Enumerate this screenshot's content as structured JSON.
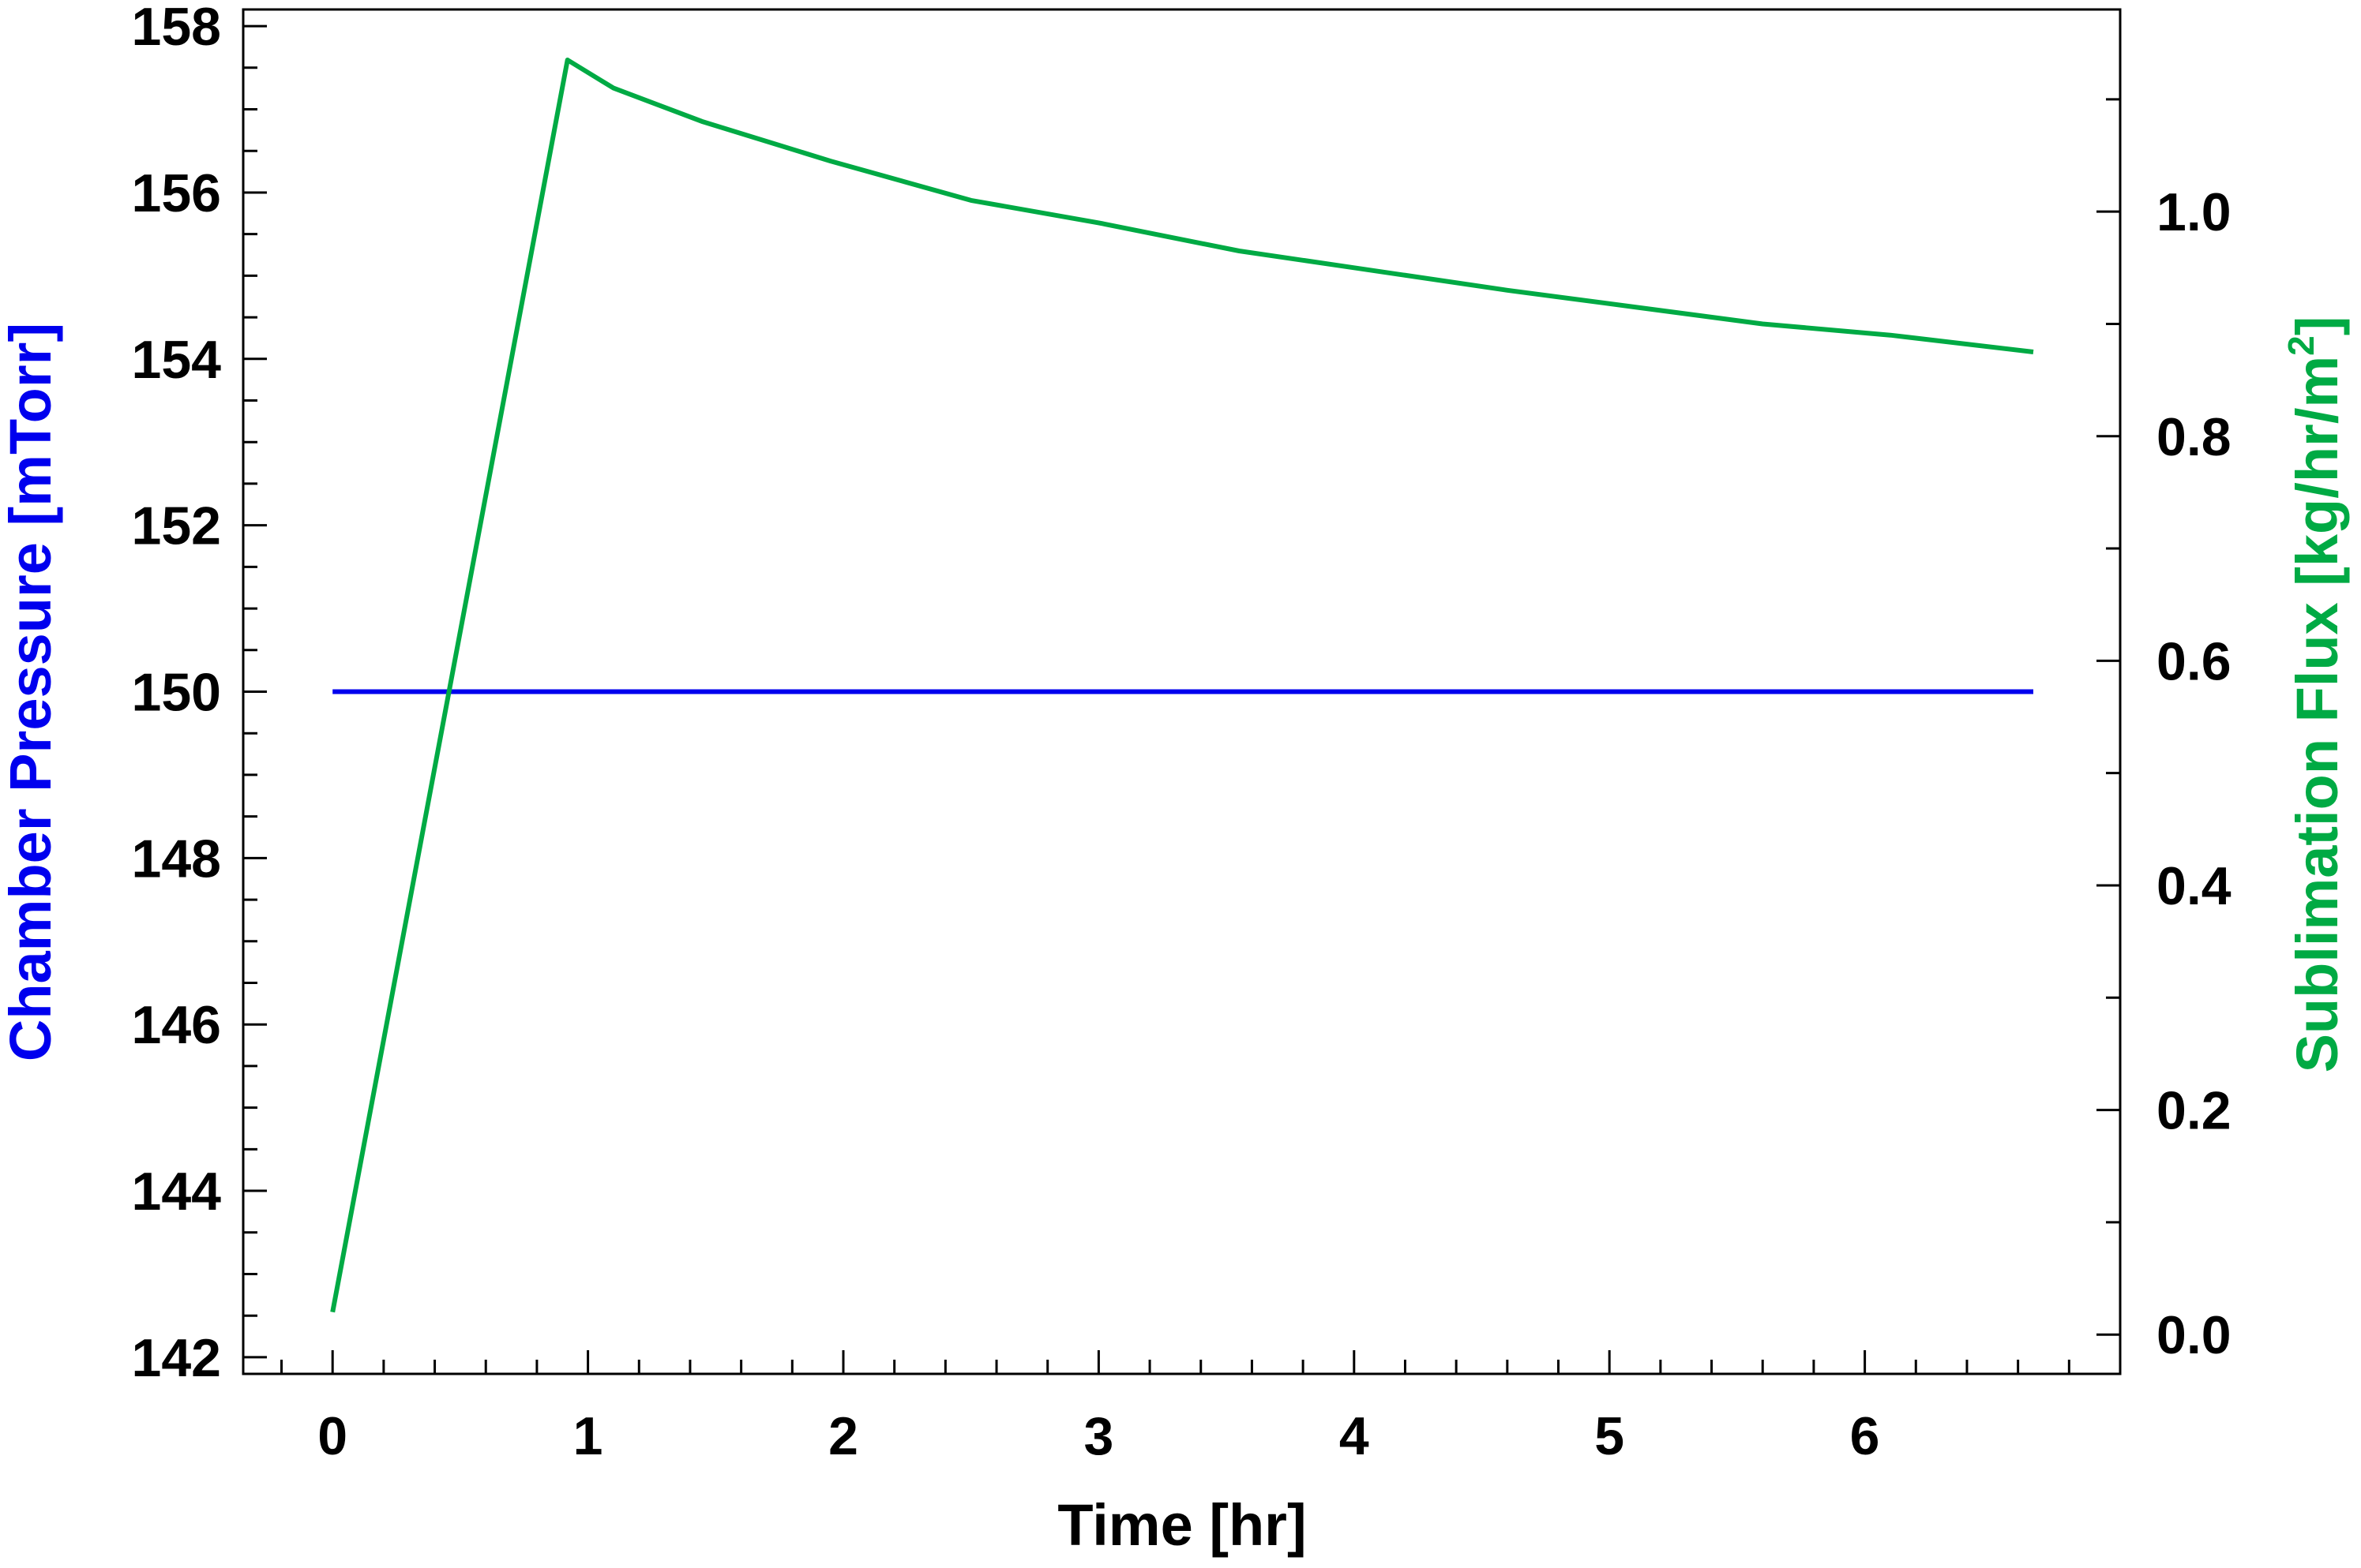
{
  "chart_data": {
    "type": "line",
    "title": "",
    "xlabel": "Time [hr]",
    "ylabel_left": "Chamber Pressure [mTorr]",
    "ylabel_right_main": "Sublimation Flux [kg/hr/m",
    "ylabel_right_sup": "2",
    "ylabel_right_tail": "]",
    "xlim": [
      -0.35,
      7.0
    ],
    "ylim_left": [
      141.8,
      158.2
    ],
    "ylim_right": [
      -0.035,
      1.18
    ],
    "x_ticks": [
      0,
      1,
      2,
      3,
      4,
      5,
      6
    ],
    "x_tick_labels": [
      "0",
      "1",
      "2",
      "3",
      "4",
      "5",
      "6"
    ],
    "y_left_ticks": [
      142,
      144,
      146,
      148,
      150,
      152,
      154,
      156,
      158
    ],
    "y_left_tick_labels": [
      "142",
      "144",
      "146",
      "148",
      "150",
      "152",
      "154",
      "156",
      "158"
    ],
    "y_right_ticks": [
      0.0,
      0.2,
      0.4,
      0.6,
      0.8,
      1.0
    ],
    "y_right_tick_labels": [
      "0.0",
      "0.2",
      "0.4",
      "0.6",
      "0.8",
      "1.0"
    ],
    "grid": false,
    "legend": "none",
    "colors": {
      "pressure": "#0000ee",
      "flux": "#00aa44",
      "axis": "#000000"
    },
    "series": [
      {
        "axis": "left",
        "color": "#0000ee",
        "x": [
          0,
          6.66
        ],
        "y": [
          150.0,
          150.0
        ]
      },
      {
        "axis": "right",
        "color": "#00aa44",
        "x": [
          0,
          0.92,
          1.1,
          1.45,
          1.95,
          2.5,
          3.0,
          3.55,
          4.0,
          4.6,
          5.1,
          5.6,
          6.1,
          6.66
        ],
        "y": [
          0.02,
          1.135,
          1.11,
          1.08,
          1.045,
          1.01,
          0.99,
          0.965,
          0.95,
          0.93,
          0.915,
          0.9,
          0.89,
          0.875
        ]
      }
    ]
  }
}
